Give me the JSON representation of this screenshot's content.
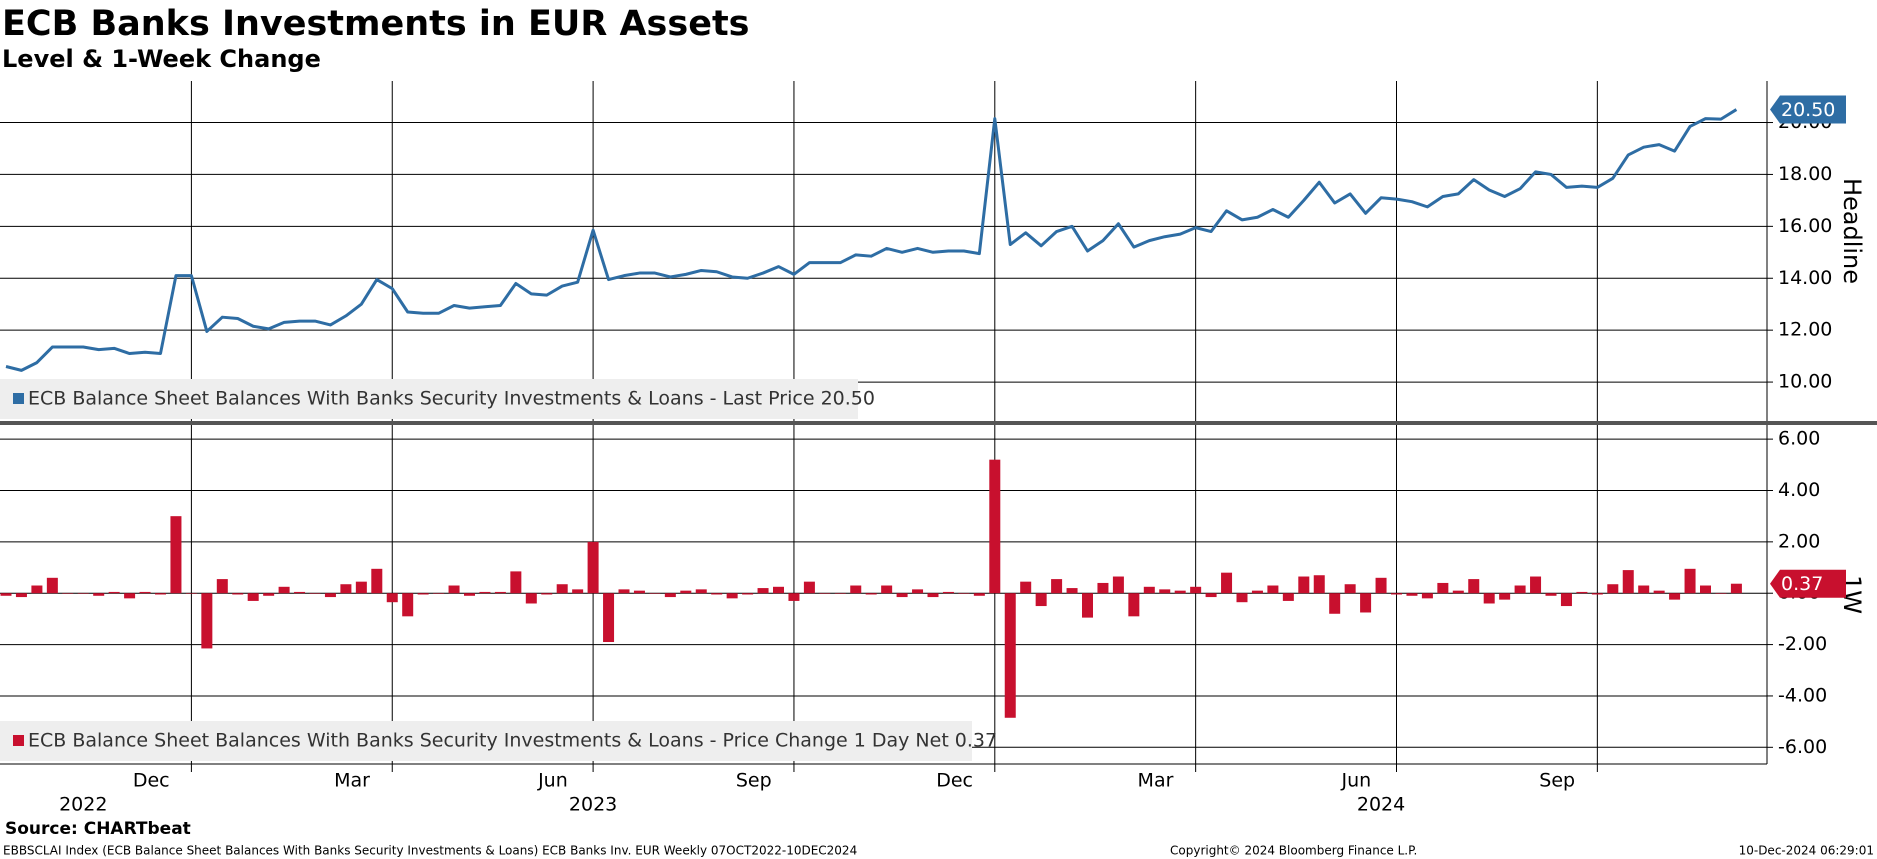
{
  "title": "ECB Banks Investments in EUR Assets",
  "subtitle": "Level & 1-Week Change",
  "source": "Source: CHARTbeat",
  "footer": {
    "ticker": "EBBSCLAI Index (ECB Balance Sheet Balances With Banks Security Investments & Loans) ECB Banks Inv. EUR  Weekly 07OCT2022-10DEC2024",
    "copyright": "Copyright© 2024 Bloomberg Finance L.P.",
    "timestamp": "10-Dec-2024 06:29:01"
  },
  "x_axis": {
    "xticks": [
      {
        "value": 12,
        "label": "Dec"
      },
      {
        "value": 25,
        "label": "Mar"
      },
      {
        "value": 38,
        "label": "Jun"
      },
      {
        "value": 51,
        "label": "Sep"
      },
      {
        "value": 64,
        "label": "Dec"
      },
      {
        "value": 77,
        "label": "Mar"
      },
      {
        "value": 90,
        "label": "Jun"
      },
      {
        "value": 103,
        "label": "Sep"
      }
    ],
    "year_labels": [
      {
        "value": 5,
        "label": "2022"
      },
      {
        "value": 38,
        "label": "2023"
      },
      {
        "value": 89,
        "label": "2024"
      }
    ]
  },
  "chart_data": [
    {
      "type": "line",
      "name": "ECB Balance Sheet Balances With Banks Security Investments & Loans - Last Price 20.50",
      "color": "#2e6da4",
      "axis_title": "Headline",
      "last_label": "20.50",
      "ylim": [
        8.5,
        21.6
      ],
      "yticks": [
        {
          "value": 10,
          "label": "10.00"
        },
        {
          "value": 12,
          "label": "12.00"
        },
        {
          "value": 14,
          "label": "14.00"
        },
        {
          "value": 16,
          "label": "16.00"
        },
        {
          "value": 18,
          "label": "18.00"
        },
        {
          "value": 20,
          "label": "20.00"
        }
      ],
      "values": [
        10.6,
        10.45,
        10.75,
        11.35,
        11.35,
        11.35,
        11.25,
        11.3,
        11.1,
        11.15,
        11.1,
        14.1,
        14.1,
        11.95,
        12.5,
        12.45,
        12.15,
        12.05,
        12.3,
        12.35,
        12.35,
        12.2,
        12.55,
        13.0,
        13.95,
        13.6,
        12.7,
        12.65,
        12.65,
        12.95,
        12.85,
        12.9,
        12.95,
        13.8,
        13.4,
        13.35,
        13.7,
        13.85,
        15.85,
        13.95,
        14.1,
        14.2,
        14.2,
        14.05,
        14.15,
        14.3,
        14.25,
        14.05,
        14.0,
        14.2,
        14.45,
        14.15,
        14.6,
        14.6,
        14.6,
        14.9,
        14.85,
        15.15,
        15.0,
        15.15,
        15.0,
        15.05,
        15.05,
        14.95,
        20.15,
        15.3,
        15.75,
        15.25,
        15.8,
        16.0,
        15.05,
        15.45,
        16.1,
        15.2,
        15.45,
        15.6,
        15.7,
        15.95,
        15.8,
        16.6,
        16.25,
        16.35,
        16.65,
        16.35,
        17.0,
        17.7,
        16.9,
        17.25,
        16.5,
        17.1,
        17.05,
        16.95,
        16.75,
        17.15,
        17.25,
        17.8,
        17.4,
        17.15,
        17.45,
        18.1,
        18.0,
        17.5,
        17.55,
        17.5,
        17.85,
        18.75,
        19.05,
        19.15,
        18.9,
        19.85,
        20.15,
        20.13,
        20.5
      ]
    },
    {
      "type": "bar",
      "name": "ECB Balance Sheet Balances With Banks Security Investments & Loans - Price Change 1 Day Net 0.37",
      "color": "#c8102e",
      "axis_title": "1W",
      "last_label": "0.37",
      "ylim": [
        -6.65,
        6.55
      ],
      "yticks": [
        {
          "value": -6,
          "label": "-6.00"
        },
        {
          "value": -4,
          "label": "-4.00"
        },
        {
          "value": -2,
          "label": "-2.00"
        },
        {
          "value": 0,
          "label": "0.00"
        },
        {
          "value": 2,
          "label": "2.00"
        },
        {
          "value": 4,
          "label": "4.00"
        },
        {
          "value": 6,
          "label": "6.00"
        }
      ],
      "values": [
        -0.1,
        -0.15,
        0.3,
        0.6,
        0,
        0,
        -0.1,
        0.05,
        -0.2,
        0.05,
        -0.05,
        3.0,
        0,
        -2.15,
        0.55,
        -0.05,
        -0.3,
        -0.1,
        0.25,
        0.05,
        0,
        -0.15,
        0.35,
        0.45,
        0.95,
        -0.35,
        -0.9,
        -0.05,
        0,
        0.3,
        -0.1,
        0.05,
        0.05,
        0.85,
        -0.4,
        -0.05,
        0.35,
        0.15,
        2.0,
        -1.9,
        0.15,
        0.1,
        0,
        -0.15,
        0.1,
        0.15,
        -0.05,
        -0.2,
        -0.05,
        0.2,
        0.25,
        -0.3,
        0.45,
        0,
        0,
        0.3,
        -0.05,
        0.3,
        -0.15,
        0.15,
        -0.15,
        0.05,
        0,
        -0.1,
        5.2,
        -4.85,
        0.45,
        -0.5,
        0.55,
        0.2,
        -0.95,
        0.4,
        0.65,
        -0.9,
        0.25,
        0.15,
        0.1,
        0.25,
        -0.15,
        0.8,
        -0.35,
        0.1,
        0.3,
        -0.3,
        0.65,
        0.7,
        -0.8,
        0.35,
        -0.75,
        0.6,
        -0.05,
        -0.1,
        -0.2,
        0.4,
        0.1,
        0.55,
        -0.4,
        -0.25,
        0.3,
        0.65,
        -0.1,
        -0.5,
        0.05,
        -0.05,
        0.35,
        0.9,
        0.3,
        0.1,
        -0.25,
        0.95,
        0.3,
        -0.02,
        0.37
      ]
    }
  ]
}
